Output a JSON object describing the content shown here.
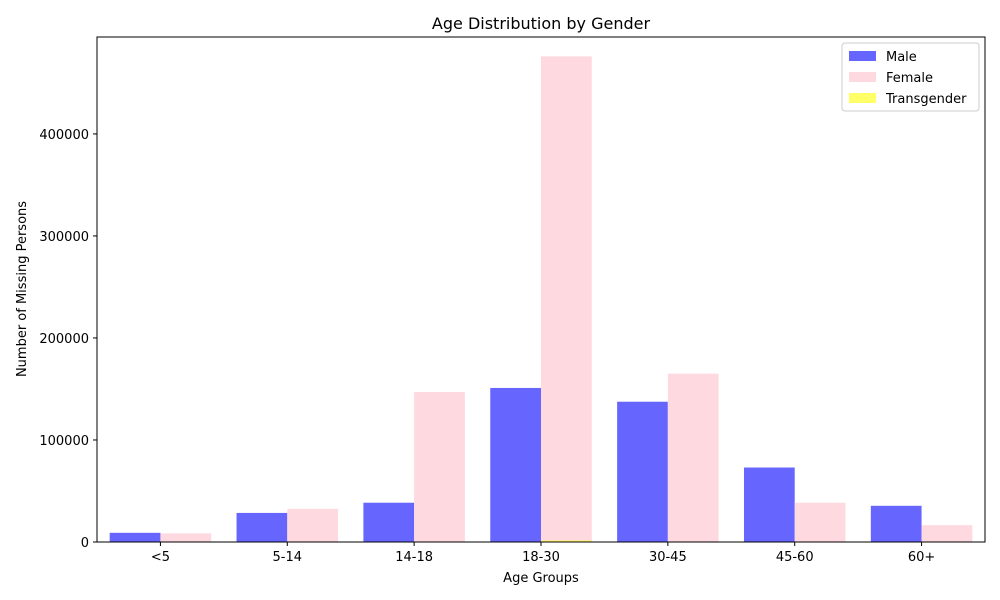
{
  "chart_data": {
    "type": "bar",
    "title": "Age Distribution by Gender",
    "xlabel": "Age Groups",
    "ylabel": "Number of Missing Persons",
    "categories": [
      "<5",
      "5-14",
      "14-18",
      "18-30",
      "30-45",
      "45-60",
      "60+"
    ],
    "series": [
      {
        "name": "Male",
        "color": "#6666ff",
        "values": [
          9000,
          28500,
          38500,
          151000,
          137500,
          73000,
          35500
        ]
      },
      {
        "name": "Female",
        "color": "#ffd9e0",
        "values": [
          8500,
          32500,
          147000,
          476000,
          165000,
          38500,
          16500
        ]
      },
      {
        "name": "Transgender",
        "color": "#ffff66",
        "values": [
          20,
          30,
          80,
          1500,
          300,
          50,
          10
        ]
      }
    ],
    "ylim": [
      0,
      495000
    ],
    "yticks": [
      0,
      100000,
      200000,
      300000,
      400000
    ],
    "ytick_labels": [
      "0",
      "100000",
      "200000",
      "300000",
      "400000"
    ],
    "grid": false,
    "legend_position": "top-right"
  }
}
